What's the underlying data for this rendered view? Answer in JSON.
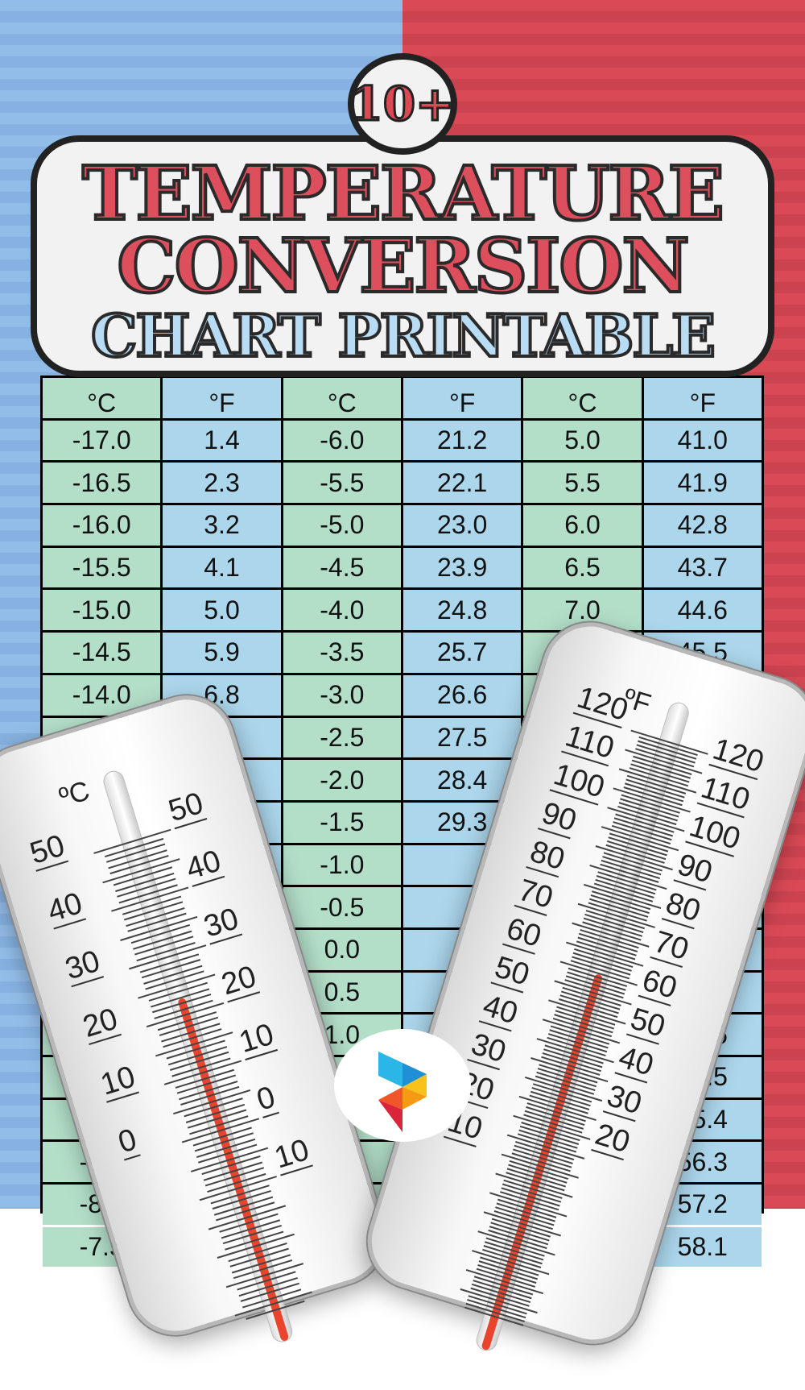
{
  "title": {
    "badge": "10+",
    "line1": "TEMPERATURE",
    "line2": "CONVERSION",
    "line3": "CHART PRINTABLE"
  },
  "table": {
    "headers": [
      "°C",
      "°F",
      "°C",
      "°F",
      "°C",
      "°F"
    ],
    "rows": [
      [
        "-17.0",
        "1.4",
        "-6.0",
        "21.2",
        "5.0",
        "41.0"
      ],
      [
        "-16.5",
        "2.3",
        "-5.5",
        "22.1",
        "5.5",
        "41.9"
      ],
      [
        "-16.0",
        "3.2",
        "-5.0",
        "23.0",
        "6.0",
        "42.8"
      ],
      [
        "-15.5",
        "4.1",
        "-4.5",
        "23.9",
        "6.5",
        "43.7"
      ],
      [
        "-15.0",
        "5.0",
        "-4.0",
        "24.8",
        "7.0",
        "44.6"
      ],
      [
        "-14.5",
        "5.9",
        "-3.5",
        "25.7",
        "7.5",
        "45.5"
      ],
      [
        "-14.0",
        "6.8",
        "-3.0",
        "26.6",
        "",
        ""
      ],
      [
        "-13.5",
        "",
        "-2.5",
        "27.5",
        "",
        ""
      ],
      [
        "",
        "",
        "-2.0",
        "28.4",
        "",
        ""
      ],
      [
        "",
        "",
        "-1.5",
        "29.3",
        "",
        ""
      ],
      [
        "",
        "",
        "-1.0",
        "",
        "",
        ""
      ],
      [
        "",
        "",
        "-0.5",
        "",
        "",
        ""
      ],
      [
        "",
        "",
        "0.0",
        "",
        "",
        ""
      ],
      [
        "",
        "",
        "0.5",
        "",
        "",
        ""
      ],
      [
        "",
        "",
        "1.0",
        "",
        "",
        "53.6"
      ],
      [
        "",
        "",
        "",
        "",
        "",
        "54.5"
      ],
      [
        "-9.0",
        "",
        "",
        "",
        "",
        "55.4"
      ],
      [
        "-8.5",
        "",
        "",
        "",
        "",
        "56.3"
      ],
      [
        "-8.0",
        "",
        "",
        "",
        "",
        "57.2"
      ],
      [
        "-7.5",
        "",
        "",
        "",
        "",
        "58.1"
      ]
    ]
  },
  "thermometer_c": {
    "unit": "ºC",
    "left_labels": [
      "50",
      "40",
      "30",
      "20",
      "10",
      "0"
    ],
    "right_labels": [
      "50",
      "40",
      "30",
      "20",
      "10",
      "0",
      "10"
    ],
    "reading_fraction": 0.6
  },
  "thermometer_f": {
    "unit": "ºF",
    "left_labels": [
      "120",
      "110",
      "100",
      "90",
      "80",
      "70",
      "60",
      "50",
      "40",
      "30",
      "20",
      "10"
    ],
    "right_labels": [
      "120",
      "110",
      "100",
      "90",
      "80",
      "70",
      "60",
      "50",
      "40",
      "30",
      "20"
    ],
    "reading_fraction": 0.58
  },
  "colors": {
    "left_bg": "#93bde9",
    "right_bg": "#da4a56",
    "celsius_cell": "#b3dfc9",
    "fahrenheit_cell": "#acd6ec",
    "title_red": "#dd4f5c",
    "title_blue": "#b9dcf5",
    "mercury": "#e8442e"
  },
  "logo": {
    "icon": "brand-logo-icon"
  }
}
